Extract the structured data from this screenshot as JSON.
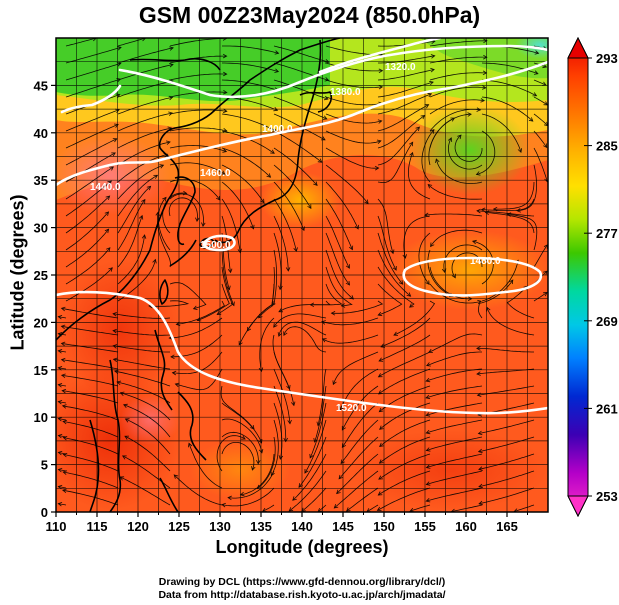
{
  "title": "GSM 00Z23May2024 (850.0hPa)",
  "map": {
    "xlabel": "Longitude (degrees)",
    "ylabel": "Latitude  (degrees)",
    "x_ticks": [
      "110",
      "115",
      "120",
      "125",
      "130",
      "135",
      "140",
      "145",
      "150",
      "155",
      "160",
      "165"
    ],
    "y_ticks": [
      "0",
      "5",
      "10",
      "15",
      "20",
      "25",
      "30",
      "35",
      "40",
      "45"
    ],
    "contour_labels": [
      "1320.0",
      "1380.0",
      "1400.0",
      "1440.0",
      "1460.0",
      "1480.0",
      "1500.0",
      "1520.0"
    ]
  },
  "colorbar": {
    "tick_labels": [
      "293",
      "285",
      "277",
      "269",
      "261",
      "253"
    ],
    "colors": [
      "#e60000",
      "#ff6a00",
      "#ffb400",
      "#ffe000",
      "#9be600",
      "#28c800",
      "#00d8a0",
      "#00c8e6",
      "#0080ff",
      "#0020c8",
      "#5a00c8",
      "#b400c8",
      "#ff32c8"
    ]
  },
  "credits": {
    "line1": "Drawing by DCL (https://www.gfd-dennou.org/library/dcl/)",
    "line2": "Data from http://database.rish.kyoto-u.ac.jp/arch/jmadata/"
  }
}
